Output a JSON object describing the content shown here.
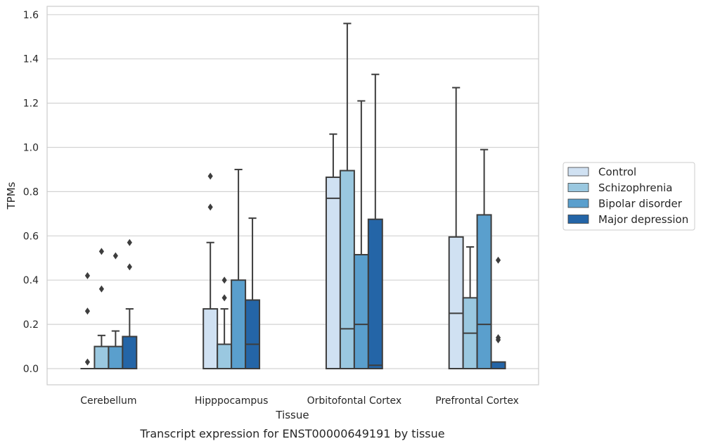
{
  "chart_data": {
    "type": "box",
    "xlabel": "Tissue",
    "ylabel": "TPMs",
    "caption": "Transcript expression for ENST00000649191 by tissue",
    "ylim": [
      -0.075,
      1.64
    ],
    "yticks": [
      "0.0",
      "0.2",
      "0.4",
      "0.6",
      "0.8",
      "1.0",
      "1.2",
      "1.4",
      "1.6"
    ],
    "grid": true,
    "legend_position": "right",
    "categories": [
      "Cerebellum",
      "Hipppocampus",
      "Orbitofontal Cortex",
      "Prefrontal Cortex"
    ],
    "series": [
      {
        "name": "Control",
        "color": "#d0e1f2",
        "boxes": [
          {
            "q1": 0,
            "median": 0,
            "q3": 0,
            "whisker_low": 0,
            "whisker_high": 0,
            "outliers": [
              0.03,
              0.26,
              0.42
            ]
          },
          {
            "q1": 0,
            "median": 0,
            "q3": 0.27,
            "whisker_low": 0,
            "whisker_high": 0.57,
            "outliers": [
              0.73,
              0.87
            ]
          },
          {
            "q1": 0,
            "median": 0.77,
            "q3": 0.865,
            "whisker_low": 0,
            "whisker_high": 1.06,
            "outliers": []
          },
          {
            "q1": 0,
            "median": 0.25,
            "q3": 0.595,
            "whisker_low": 0,
            "whisker_high": 1.27,
            "outliers": []
          }
        ]
      },
      {
        "name": "Schizophrenia",
        "color": "#9ac8e0",
        "boxes": [
          {
            "q1": 0,
            "median": 0,
            "q3": 0.1,
            "whisker_low": 0,
            "whisker_high": 0.15,
            "outliers": [
              0.36,
              0.53
            ]
          },
          {
            "q1": 0,
            "median": 0,
            "q3": 0.11,
            "whisker_low": 0,
            "whisker_high": 0.27,
            "outliers": [
              0.32,
              0.4
            ]
          },
          {
            "q1": 0,
            "median": 0.18,
            "q3": 0.895,
            "whisker_low": 0,
            "whisker_high": 1.56,
            "outliers": []
          },
          {
            "q1": 0,
            "median": 0.16,
            "q3": 0.32,
            "whisker_low": 0,
            "whisker_high": 0.55,
            "outliers": []
          }
        ]
      },
      {
        "name": "Bipolar disorder",
        "color": "#5a9fcd",
        "boxes": [
          {
            "q1": 0,
            "median": 0,
            "q3": 0.1,
            "whisker_low": 0,
            "whisker_high": 0.17,
            "outliers": [
              0.51
            ]
          },
          {
            "q1": 0,
            "median": 0,
            "q3": 0.4,
            "whisker_low": 0,
            "whisker_high": 0.9,
            "outliers": []
          },
          {
            "q1": 0,
            "median": 0.2,
            "q3": 0.515,
            "whisker_low": 0,
            "whisker_high": 1.21,
            "outliers": []
          },
          {
            "q1": 0,
            "median": 0.2,
            "q3": 0.695,
            "whisker_low": 0,
            "whisker_high": 0.99,
            "outliers": []
          }
        ]
      },
      {
        "name": "Major depression",
        "color": "#2465a7",
        "boxes": [
          {
            "q1": 0,
            "median": 0,
            "q3": 0.145,
            "whisker_low": 0,
            "whisker_high": 0.27,
            "outliers": [
              0.46,
              0.57
            ]
          },
          {
            "q1": 0,
            "median": 0.11,
            "q3": 0.31,
            "whisker_low": 0,
            "whisker_high": 0.68,
            "outliers": []
          },
          {
            "q1": 0,
            "median": 0.015,
            "q3": 0.675,
            "whisker_low": 0,
            "whisker_high": 1.33,
            "outliers": []
          },
          {
            "q1": 0,
            "median": 0,
            "q3": 0.03,
            "whisker_low": 0,
            "whisker_high": 0.03,
            "outliers": [
              0.13,
              0.14,
              0.49
            ]
          }
        ]
      }
    ]
  }
}
